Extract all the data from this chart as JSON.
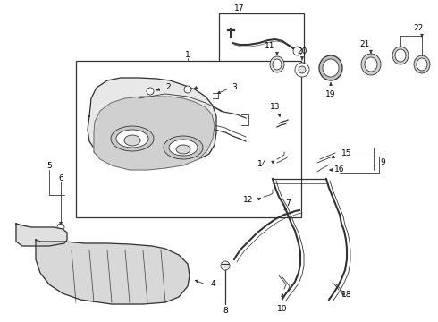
{
  "bg_color": "#ffffff",
  "line_color": "#333333",
  "label_color": "#000000",
  "lw_thin": 0.6,
  "lw_med": 0.9,
  "lw_thick": 1.5,
  "font_size": 6.5,
  "figsize": [
    4.9,
    3.6
  ],
  "dpi": 100
}
